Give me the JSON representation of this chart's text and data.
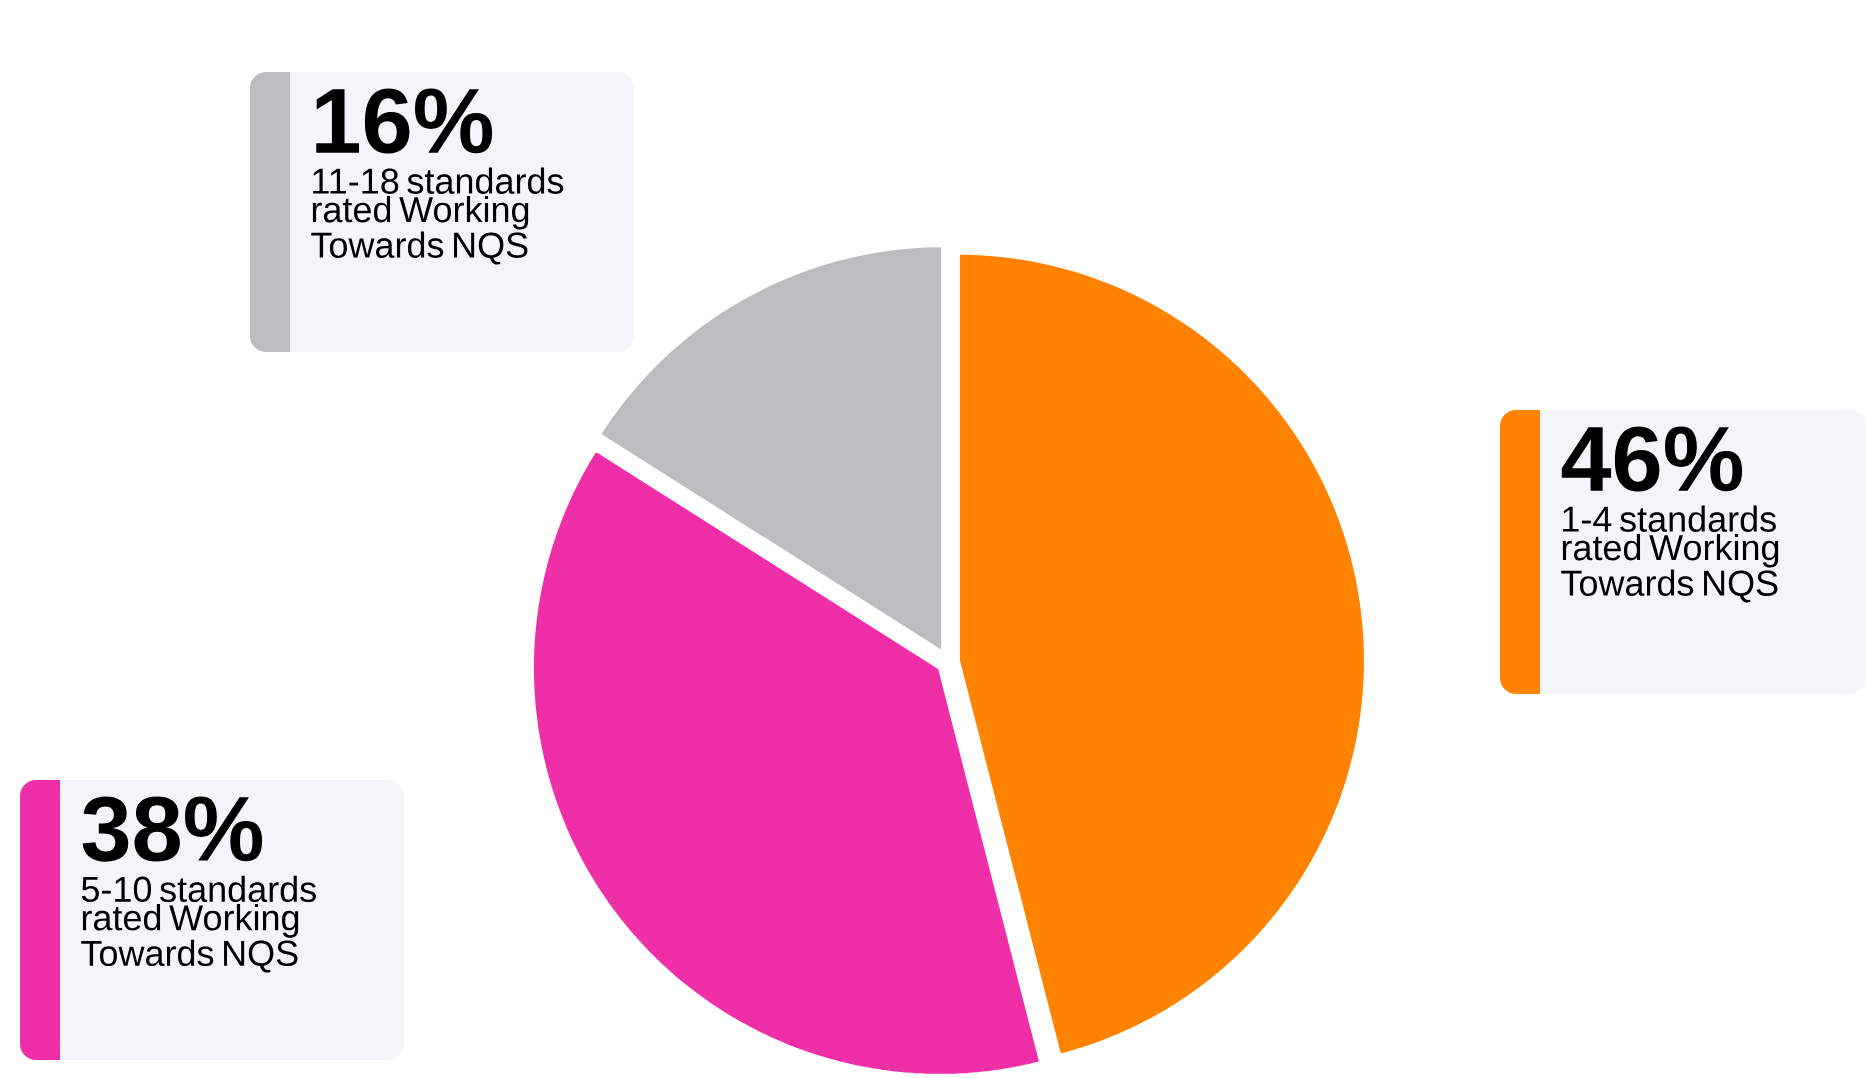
{
  "chart_data": {
    "type": "pie",
    "categories": [
      "1-4  standards rated Working Towards NQS",
      "5-10  standards rated Working Towards NQS",
      "11-18 standards rated Working Towards NQS"
    ],
    "values": [
      46,
      38,
      16
    ],
    "value_labels": [
      "46%",
      "38%",
      "16%"
    ],
    "colors": [
      "#ff8300",
      "#ee2fa7",
      "#bbbdbe"
    ]
  }
}
